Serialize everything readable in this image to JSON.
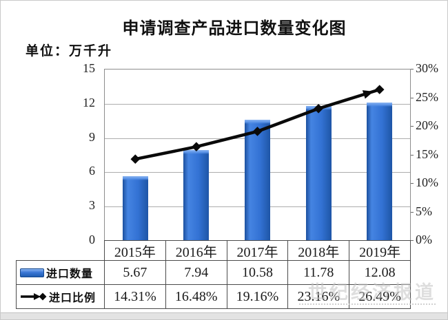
{
  "title": "申请调查产品进口数量变化图",
  "unit_label": "单位：万千升",
  "watermark": "世纪经济报道",
  "colors": {
    "bar_blue": "#2e6bc8",
    "line_black": "#0a0a0a",
    "grid_gray": "#adadad",
    "table_border": "#4a4a4a"
  },
  "chart_data": {
    "type": "bar+line",
    "title": "申请调查产品进口数量变化图",
    "unit": "万千升",
    "categories": [
      "2015年",
      "2016年",
      "2017年",
      "2018年",
      "2019年"
    ],
    "series": [
      {
        "name": "进口数量",
        "type": "bar",
        "axis": "left",
        "values": [
          5.67,
          7.94,
          10.58,
          11.78,
          12.08
        ],
        "values_display": [
          "5.67",
          "7.94",
          "10.58",
          "11.78",
          "12.08"
        ],
        "color": "#2e6bc8",
        "legend_icon": "blue-bar"
      },
      {
        "name": "进口比例",
        "type": "line",
        "axis": "right",
        "values": [
          14.31,
          16.48,
          19.16,
          23.16,
          26.49
        ],
        "values_display": [
          "14.31%",
          "16.48%",
          "19.16%",
          "23.16%",
          "26.49%"
        ],
        "color": "#0a0a0a",
        "marker": "diamond",
        "end_arrow": true,
        "legend_icon": "black-arrow-diamond"
      }
    ],
    "left_axis": {
      "min": 0,
      "max": 15,
      "ticks": [
        "15",
        "12",
        "9",
        "6",
        "3",
        "0"
      ]
    },
    "right_axis": {
      "min": 0,
      "max": 30,
      "ticks": [
        "30%",
        "25%",
        "20%",
        "15%",
        "10%",
        "5%",
        "0%"
      ]
    },
    "grid": true,
    "legend_position": "table-row-headers"
  }
}
